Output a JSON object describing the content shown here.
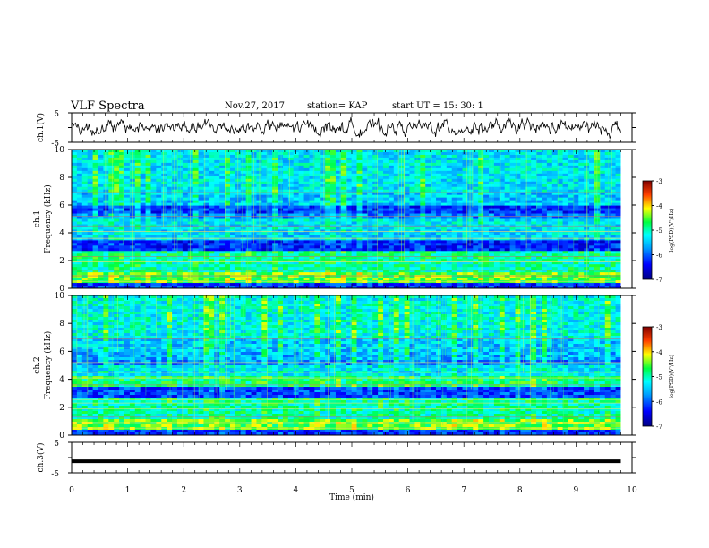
{
  "header": {
    "title": "VLF Spectra",
    "date": "Nov.27, 2017",
    "station": "station= KAP",
    "start": "start  UT =   15: 30: 1"
  },
  "chart_data": [
    {
      "type": "line",
      "panel": "ch1-waveform",
      "ylabel": "ch.1(V)",
      "yticks": [
        "5",
        "-5"
      ],
      "ylim": [
        -5,
        5
      ],
      "xlim": [
        0,
        10
      ],
      "visible_range_min": [
        0,
        9.8
      ],
      "description_values": "noisy signal mostly between -3 and 3 V"
    },
    {
      "type": "heatmap",
      "panel": "ch1-spectrogram",
      "ylabel": "ch.1\nFrequency (kHz)",
      "ylabel_line1": "ch.1",
      "ylabel_line2": "Frequency (kHz)",
      "yticks": [
        "0",
        "2",
        "4",
        "6",
        "8",
        "10"
      ],
      "ylim": [
        0,
        10
      ],
      "xlim": [
        0,
        10
      ],
      "colorbar": {
        "label": "log(PSD)(V²/Hz)",
        "ticks": [
          "-3",
          "-4",
          "-5",
          "-6",
          "-7"
        ],
        "range": [
          -7,
          -3
        ]
      }
    },
    {
      "type": "heatmap",
      "panel": "ch2-spectrogram",
      "ylabel_line1": "ch.2",
      "ylabel_line2": "Frequency (kHz)",
      "yticks": [
        "0",
        "2",
        "4",
        "6",
        "8",
        "10"
      ],
      "ylim": [
        0,
        10
      ],
      "xlim": [
        0,
        10
      ],
      "colorbar": {
        "label": "log(PSD)(V²/Hz)",
        "ticks": [
          "-3",
          "-4",
          "-5",
          "-6",
          "-7"
        ],
        "range": [
          -7,
          -3
        ]
      }
    },
    {
      "type": "line",
      "panel": "ch3-waveform",
      "ylabel": "ch.3(V)",
      "yticks": [
        "5",
        "-5"
      ],
      "ylim": [
        -5,
        5
      ],
      "xlim": [
        0,
        10
      ],
      "constant_value": -1.2,
      "xlabel": "Time (min)",
      "xticks": [
        "0",
        "1",
        "2",
        "3",
        "4",
        "5",
        "6",
        "7",
        "8",
        "9",
        "10"
      ]
    }
  ]
}
